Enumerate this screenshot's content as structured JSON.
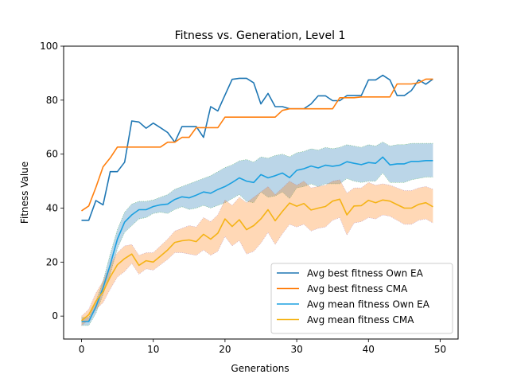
{
  "chart_data": {
    "type": "line",
    "title": "Fitness vs. Generation, Level 1",
    "xlabel": "Generations",
    "ylabel": "Fitness Value",
    "xlim": [
      -2.5,
      52.5
    ],
    "ylim": [
      -8.5,
      100
    ],
    "xticks": [
      0,
      10,
      20,
      30,
      40,
      50
    ],
    "yticks": [
      0,
      20,
      40,
      60,
      80,
      100
    ],
    "grid": false,
    "legend_position": "lower-right",
    "x": [
      0,
      1,
      2,
      3,
      4,
      5,
      6,
      7,
      8,
      9,
      10,
      11,
      12,
      13,
      14,
      15,
      16,
      17,
      18,
      19,
      20,
      21,
      22,
      23,
      24,
      25,
      26,
      27,
      28,
      29,
      30,
      31,
      32,
      33,
      34,
      35,
      36,
      37,
      38,
      39,
      40,
      41,
      42,
      43,
      44,
      45,
      46,
      47,
      48,
      49
    ],
    "series": [
      {
        "name": "Avg best fitness Own EA",
        "color": "#1f77b4",
        "values": [
          35.5,
          35.5,
          42.8,
          41.2,
          53.5,
          53.5,
          57.0,
          72.3,
          71.9,
          69.6,
          71.5,
          69.8,
          68.0,
          64.4,
          70.2,
          70.2,
          70.2,
          66.2,
          77.6,
          76.0,
          81.9,
          87.7,
          88.1,
          88.1,
          86.4,
          78.6,
          82.5,
          77.6,
          77.6,
          76.8,
          76.8,
          76.8,
          78.6,
          81.6,
          81.6,
          79.8,
          79.8,
          81.7,
          81.7,
          81.7,
          87.5,
          87.5,
          89.2,
          87.5,
          81.7,
          81.7,
          83.6,
          87.5,
          85.9,
          87.8
        ]
      },
      {
        "name": "Avg best fitness CMA",
        "color": "#ff7f0e",
        "values": [
          39.0,
          40.8,
          47.7,
          55.3,
          58.6,
          62.6,
          62.6,
          62.6,
          62.6,
          62.6,
          62.6,
          62.6,
          64.4,
          64.4,
          66.2,
          66.2,
          69.8,
          69.8,
          69.8,
          69.8,
          73.7,
          73.7,
          73.7,
          73.7,
          73.7,
          73.7,
          73.7,
          73.7,
          76.2,
          76.8,
          76.8,
          76.8,
          76.8,
          76.8,
          76.8,
          76.8,
          80.9,
          80.9,
          80.9,
          81.2,
          81.2,
          81.2,
          81.2,
          81.2,
          86.0,
          86.0,
          86.0,
          86.4,
          87.8,
          87.8
        ]
      },
      {
        "name": "Avg mean fitness Own EA",
        "color": "#1ba0e0",
        "values": [
          -2.0,
          -2.0,
          3.5,
          10.5,
          19.0,
          28.5,
          34.8,
          37.5,
          39.4,
          39.4,
          40.6,
          41.2,
          41.5,
          43.2,
          44.2,
          43.8,
          44.8,
          46.0,
          45.5,
          46.9,
          48.0,
          49.5,
          51.2,
          50.0,
          49.5,
          52.4,
          51.2,
          52.0,
          53.0,
          51.3,
          54.0,
          54.6,
          55.6,
          54.9,
          55.9,
          55.5,
          55.9,
          57.2,
          56.6,
          56.1,
          56.9,
          56.6,
          58.9,
          56.0,
          56.4,
          56.4,
          57.3,
          57.3,
          57.6,
          57.6
        ]
      },
      {
        "name": "Avg mean fitness CMA",
        "color": "#f5b316",
        "values": [
          -1.7,
          0.5,
          5.5,
          9.0,
          14.5,
          19.0,
          21.3,
          23.0,
          18.8,
          20.5,
          20.0,
          22.2,
          24.5,
          27.3,
          27.9,
          28.2,
          27.6,
          30.3,
          28.5,
          30.7,
          36.0,
          33.2,
          35.7,
          32.0,
          33.5,
          36.0,
          39.4,
          35.3,
          38.8,
          41.9,
          40.7,
          41.7,
          39.3,
          40.0,
          40.6,
          42.6,
          43.3,
          37.5,
          40.8,
          40.9,
          42.9,
          42.0,
          43.0,
          42.6,
          41.3,
          40.0,
          40.0,
          41.4,
          42.0,
          40.5
        ]
      }
    ],
    "bands": [
      {
        "series": "Avg mean fitness Own EA",
        "color": "#1f77b4",
        "upper": [
          -0.5,
          -0.5,
          5.5,
          13.0,
          23.0,
          32.0,
          38.5,
          41.5,
          42.5,
          42.5,
          43.0,
          44.0,
          45.0,
          47.0,
          48.0,
          49.0,
          50.0,
          51.0,
          52.0,
          53.5,
          55.0,
          56.0,
          57.5,
          58.0,
          57.0,
          59.0,
          58.5,
          59.5,
          60.0,
          59.0,
          60.5,
          61.0,
          62.0,
          61.5,
          62.5,
          62.0,
          62.5,
          63.5,
          63.0,
          62.5,
          63.5,
          63.0,
          64.5,
          63.0,
          63.5,
          63.5,
          64.0,
          64.0,
          64.0,
          64.0
        ],
        "lower": [
          -3.5,
          -3.5,
          1.0,
          8.0,
          15.5,
          25.0,
          31.0,
          33.5,
          36.0,
          36.5,
          38.0,
          38.5,
          38.0,
          39.5,
          40.5,
          39.5,
          40.0,
          41.0,
          40.0,
          41.0,
          42.0,
          43.5,
          45.0,
          42.5,
          42.0,
          46.0,
          44.0,
          44.5,
          46.0,
          43.5,
          47.5,
          48.0,
          49.0,
          48.0,
          49.0,
          49.0,
          49.0,
          51.0,
          50.0,
          49.5,
          50.0,
          50.0,
          53.0,
          49.5,
          49.5,
          49.5,
          50.5,
          51.0,
          51.5,
          51.5
        ]
      },
      {
        "series": "Avg mean fitness CMA",
        "color": "#ff7f0e",
        "upper": [
          0.0,
          2.5,
          8.5,
          13.0,
          19.0,
          23.5,
          26.0,
          26.5,
          22.5,
          23.5,
          23.5,
          26.0,
          28.5,
          31.5,
          32.5,
          33.5,
          33.0,
          36.5,
          35.0,
          37.5,
          43.0,
          41.0,
          44.0,
          42.0,
          44.0,
          46.0,
          48.0,
          45.0,
          47.5,
          50.0,
          48.5,
          50.0,
          47.5,
          48.0,
          48.5,
          50.0,
          50.5,
          45.5,
          47.5,
          47.5,
          49.5,
          48.5,
          49.0,
          48.5,
          47.5,
          46.5,
          46.5,
          47.5,
          48.0,
          47.0
        ],
        "lower": [
          -3.5,
          -1.5,
          2.5,
          5.0,
          10.0,
          14.5,
          16.5,
          19.5,
          15.5,
          17.5,
          17.0,
          19.0,
          21.0,
          23.5,
          23.5,
          23.0,
          22.5,
          24.5,
          22.5,
          24.0,
          29.5,
          26.0,
          28.0,
          23.0,
          24.0,
          27.0,
          31.0,
          26.5,
          30.5,
          34.0,
          33.0,
          34.0,
          31.5,
          32.5,
          33.0,
          35.5,
          36.5,
          30.0,
          34.5,
          35.0,
          36.5,
          36.0,
          37.5,
          37.0,
          35.5,
          34.0,
          34.0,
          35.5,
          36.0,
          34.5
        ]
      }
    ]
  }
}
